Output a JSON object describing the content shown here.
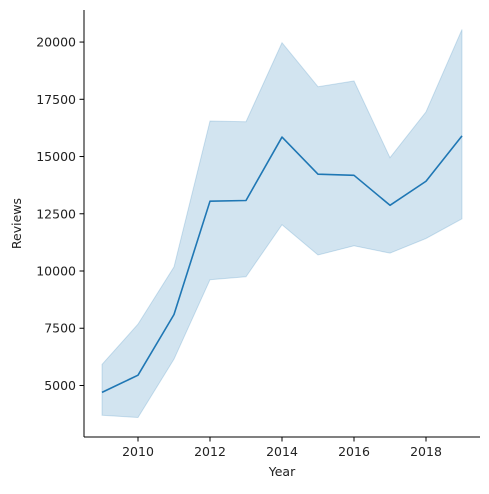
{
  "chart_data": {
    "type": "line",
    "title": "",
    "xlabel": "Year",
    "ylabel": "Reviews",
    "x": [
      2009,
      2010,
      2011,
      2012,
      2013,
      2014,
      2015,
      2016,
      2017,
      2018,
      2019
    ],
    "series": [
      {
        "values": [
          4700,
          5450,
          8100,
          13050,
          13080,
          15850,
          14230,
          14180,
          12870,
          13920,
          15900
        ],
        "ci_lower": [
          3700,
          3600,
          6150,
          9620,
          9750,
          12020,
          10700,
          11100,
          10780,
          11420,
          12280
        ],
        "ci_upper": [
          5920,
          7680,
          10180,
          16550,
          16520,
          19970,
          18050,
          18300,
          14950,
          16950,
          20550
        ],
        "color": "#1f77b4",
        "band_color": "#1f77b4"
      }
    ],
    "xticks": [
      2010,
      2012,
      2014,
      2016,
      2018
    ],
    "xtick_labels": [
      "2010",
      "2012",
      "2014",
      "2016",
      "2018"
    ],
    "yticks": [
      5000,
      7500,
      10000,
      12500,
      15000,
      17500,
      20000
    ],
    "ytick_labels": [
      "5000",
      "7500",
      "10000",
      "12500",
      "15000",
      "17500",
      "20000"
    ],
    "xlim": [
      2008.5,
      2019.5
    ],
    "ylim": [
      2750,
      21400
    ],
    "grid": false,
    "legend": "none"
  }
}
